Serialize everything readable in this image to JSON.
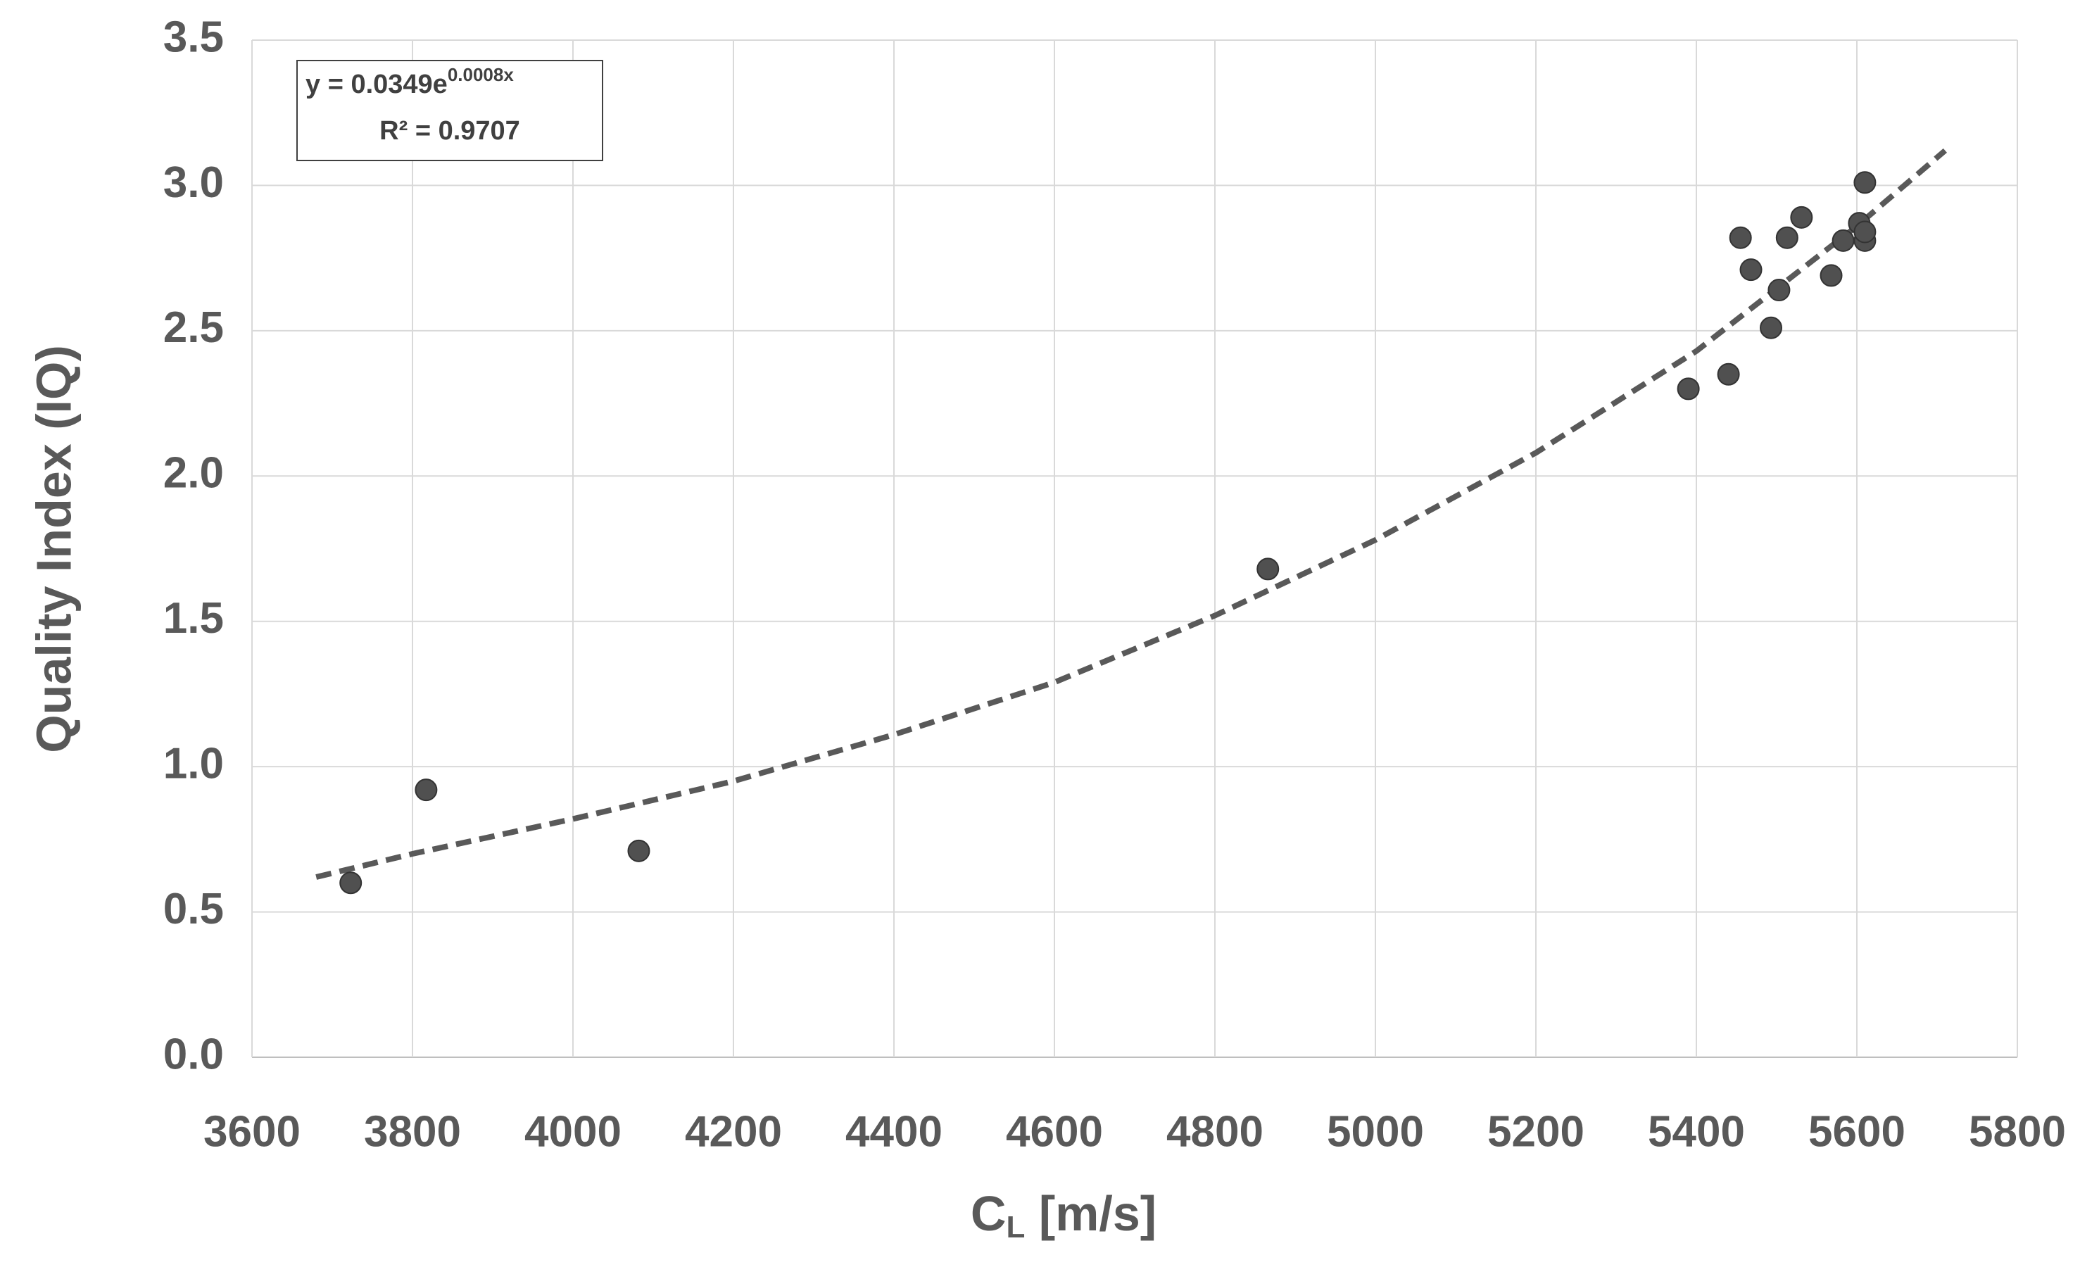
{
  "chart_data": {
    "type": "scatter",
    "x_label": {
      "text": "C",
      "subscript": "L",
      "suffix": " [m/s]"
    },
    "y_label": "Quality Index (IQ)",
    "annotation": {
      "equation": "y = 0.0349e",
      "exponent": "0.0008x",
      "r2": "R² = 0.9707"
    },
    "xlim": [
      3600,
      5800
    ],
    "xticks": [
      3600,
      3800,
      4000,
      4200,
      4400,
      4600,
      4800,
      5000,
      5200,
      5400,
      5600,
      5800
    ],
    "ylim": [
      0,
      3.5
    ],
    "yticks": [
      {
        "value": 0,
        "label": "0.0"
      },
      0.5,
      {
        "value": 1,
        "label": "1.0"
      },
      1.5,
      {
        "value": 2,
        "label": "2.0"
      },
      2.5,
      {
        "value": 3,
        "label": "3.0"
      },
      3.5
    ],
    "grid": true,
    "series": [
      {
        "color": "#505050",
        "x": [
          3723,
          3817,
          4082,
          4866,
          5390,
          5440,
          5455,
          5468,
          5493,
          5503,
          5513,
          5531,
          5568,
          5583,
          5603,
          5610,
          5610,
          5610
        ],
        "values": [
          0.6,
          0.92,
          0.71,
          1.68,
          2.3,
          2.35,
          2.82,
          2.71,
          2.51,
          2.64,
          2.82,
          2.89,
          2.69,
          2.81,
          2.87,
          3.01,
          2.81,
          2.84
        ]
      }
    ],
    "trendline": {
      "color": "#595959",
      "x": [
        3680,
        3800,
        4000,
        4200,
        4400,
        4600,
        4800,
        5000,
        5200,
        5400,
        5600,
        5710
      ],
      "values": [
        0.62,
        0.7,
        0.82,
        0.95,
        1.11,
        1.29,
        1.52,
        1.78,
        2.08,
        2.43,
        2.86,
        3.12
      ]
    }
  }
}
